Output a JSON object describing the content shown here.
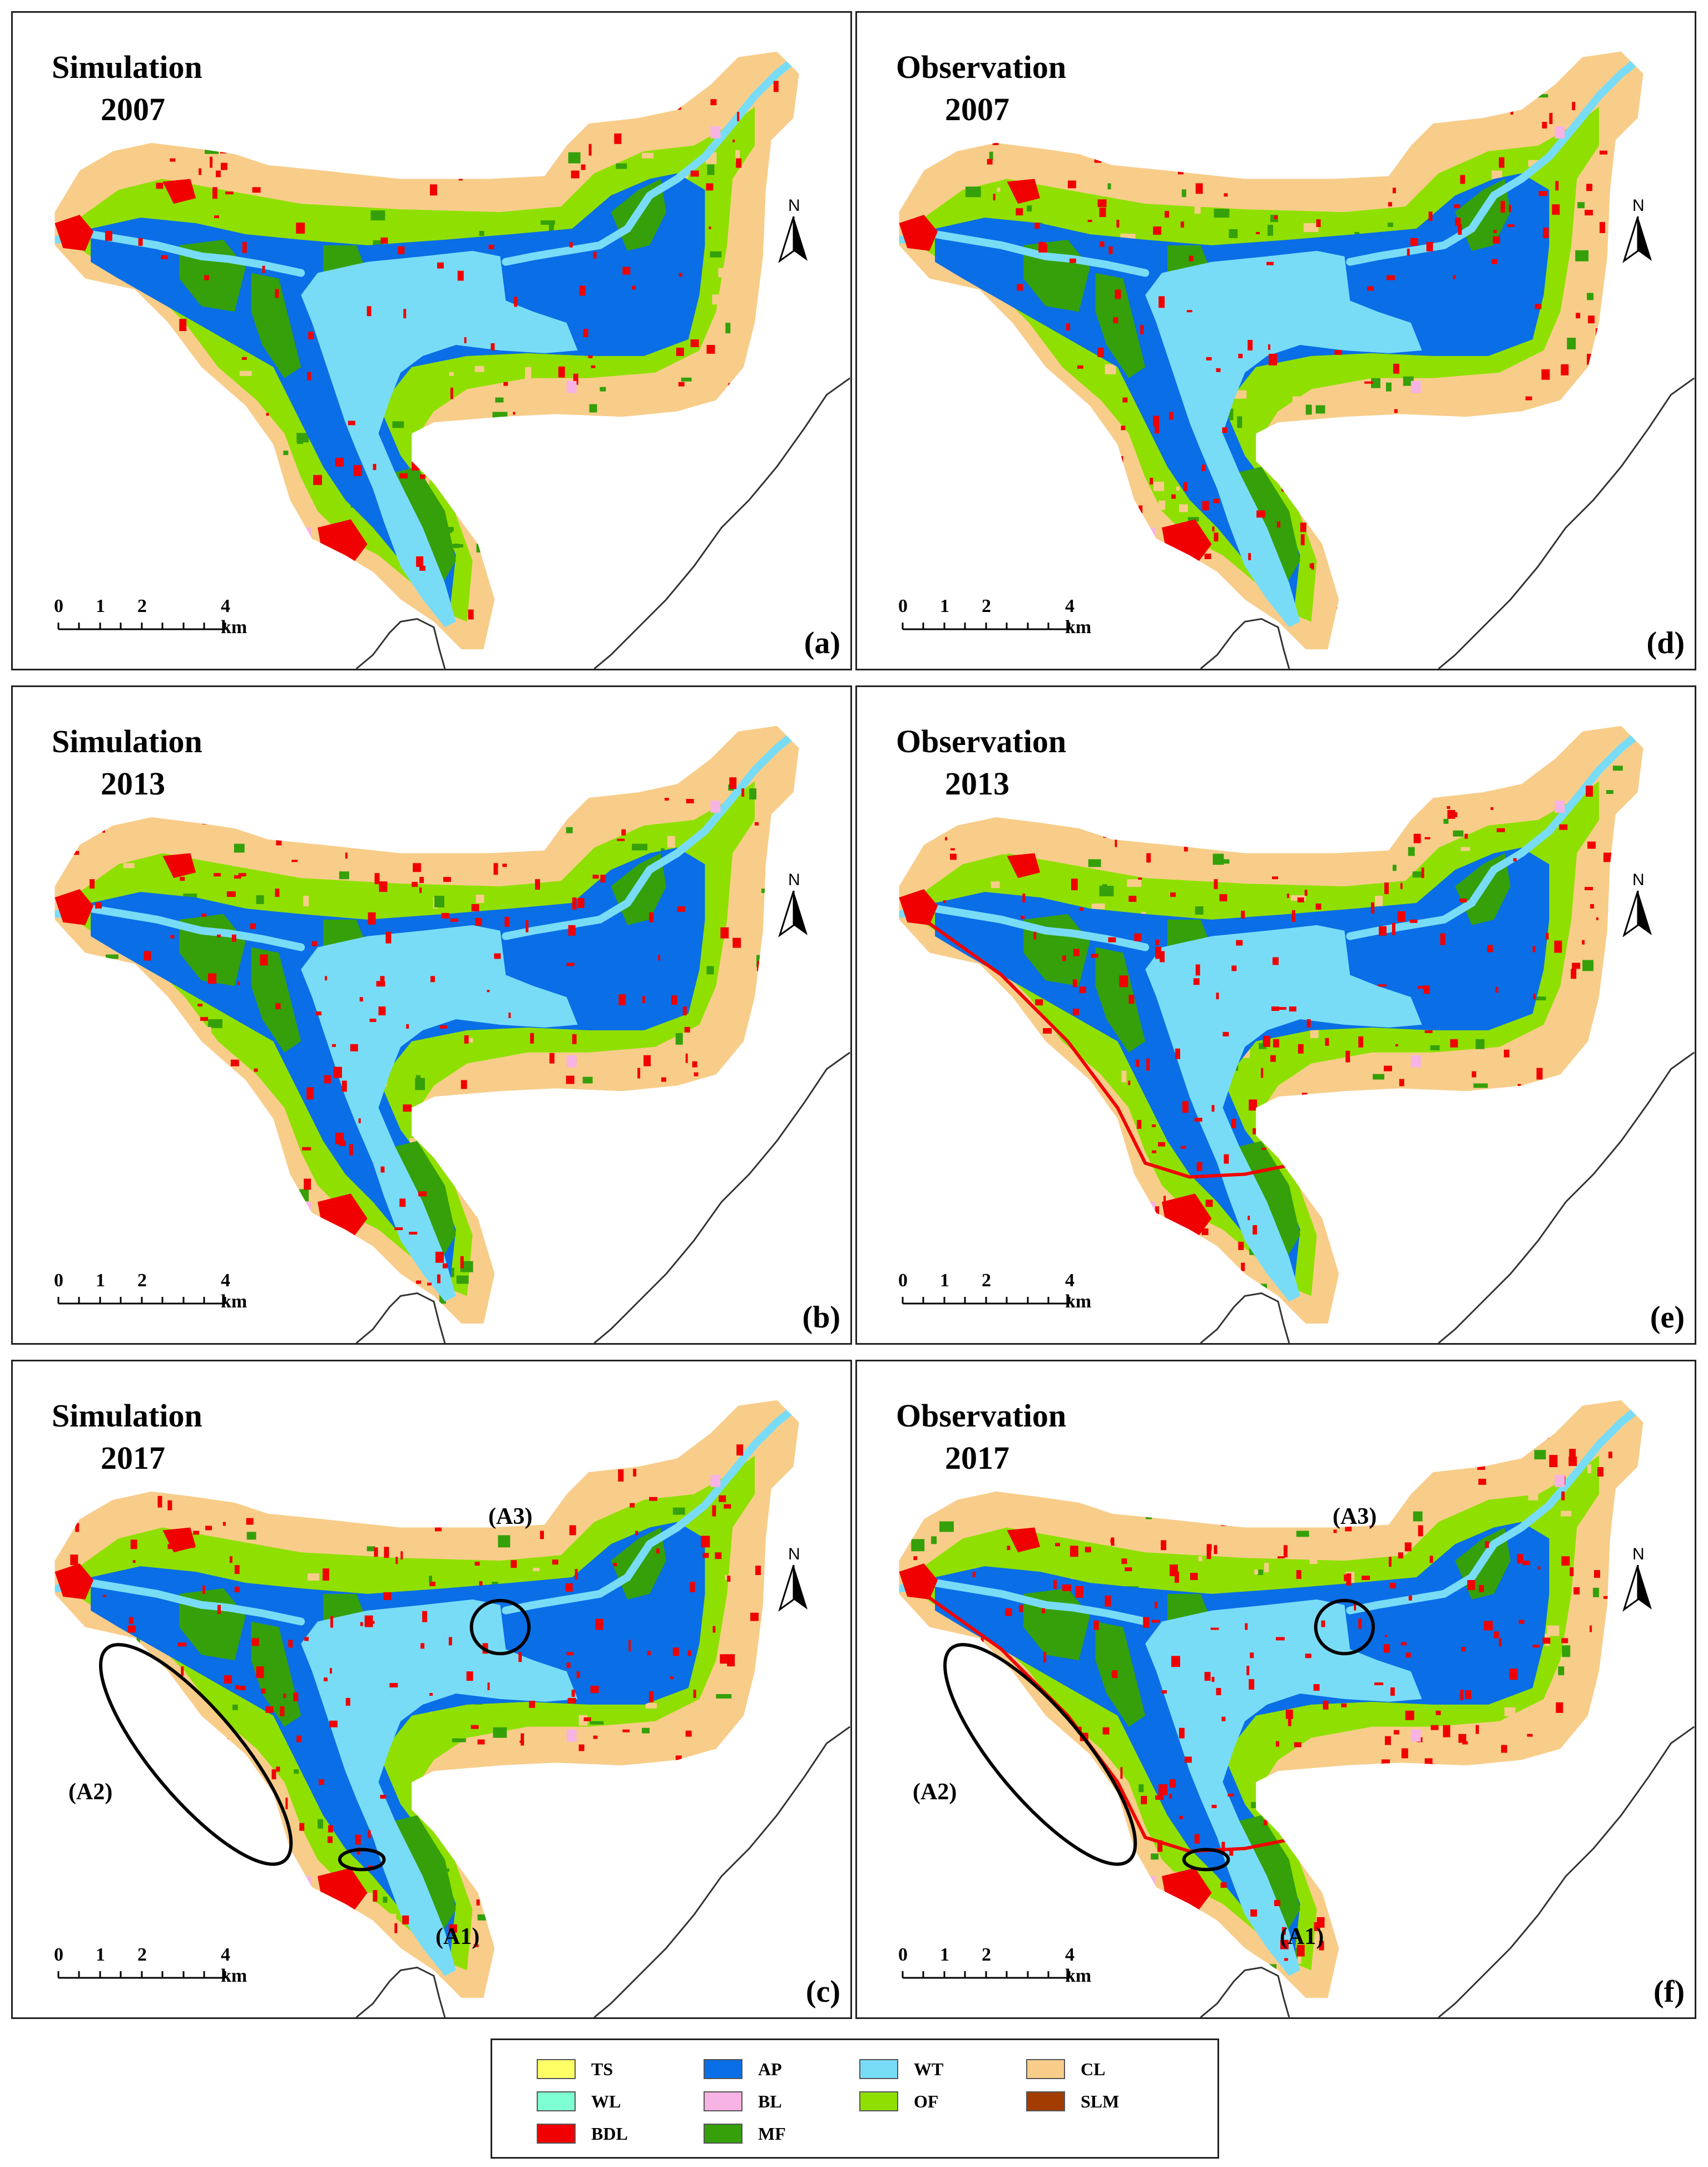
{
  "panels": [
    {
      "id": "a",
      "title_main": "Simulation",
      "title_year": "2007",
      "label": "(a)",
      "variant": "sim"
    },
    {
      "id": "d",
      "title_main": "Observation",
      "title_year": "2007",
      "label": "(d)",
      "variant": "obs"
    },
    {
      "id": "b",
      "title_main": "Simulation",
      "title_year": "2013",
      "label": "(b)",
      "variant": "sim"
    },
    {
      "id": "e",
      "title_main": "Observation",
      "title_year": "2013",
      "label": "(e)",
      "variant": "obs"
    },
    {
      "id": "c",
      "title_main": "Simulation",
      "title_year": "2017",
      "label": "(c)",
      "variant": "sim",
      "areas": [
        "(A1)",
        "(A2)",
        "(A3)"
      ]
    },
    {
      "id": "f",
      "title_main": "Observation",
      "title_year": "2017",
      "label": "(f)",
      "variant": "obs",
      "areas": [
        "(A1)",
        "(A2)",
        "(A3)"
      ]
    }
  ],
  "north_arrow": {
    "letter": "N"
  },
  "scale_bar": {
    "ticks": [
      "0",
      "1",
      "2",
      "4 km"
    ]
  },
  "legend": [
    {
      "code": "TS",
      "color": "#ffff66"
    },
    {
      "code": "AP",
      "color": "#0a6ee6"
    },
    {
      "code": "WT",
      "color": "#79dcf7"
    },
    {
      "code": "CL",
      "color": "#f8cd8a"
    },
    {
      "code": "WL",
      "color": "#7fffd4"
    },
    {
      "code": "BL",
      "color": "#f7b3e3"
    },
    {
      "code": "OF",
      "color": "#8fe000"
    },
    {
      "code": "SLM",
      "color": "#a33c00"
    },
    {
      "code": "BDL",
      "color": "#f00000"
    },
    {
      "code": "MF",
      "color": "#35a00a"
    }
  ]
}
